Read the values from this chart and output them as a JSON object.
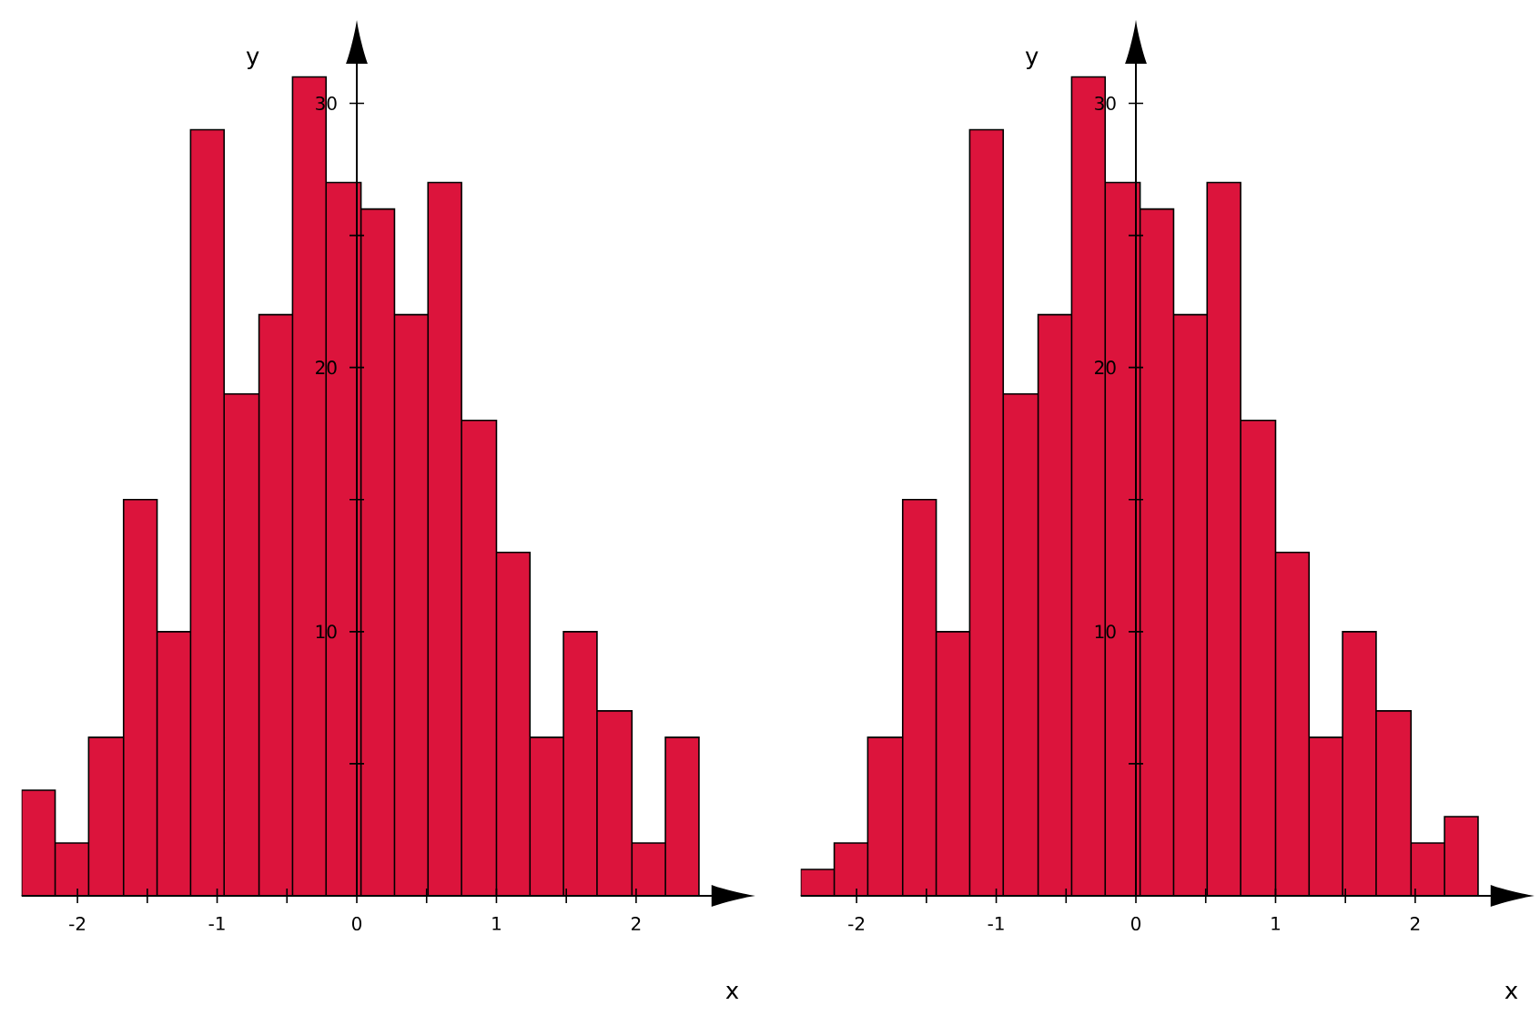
{
  "chart_data": [
    {
      "type": "histogram",
      "xlabel": "x",
      "ylabel": "y",
      "color": "#dc143c",
      "bins": [
        -2.4,
        -2.16,
        -1.92,
        -1.67,
        -1.43,
        -1.19,
        -0.95,
        -0.7,
        -0.46,
        -0.22,
        0.03,
        0.27,
        0.51,
        0.75,
        1.0,
        1.24,
        1.48,
        1.72,
        1.97,
        2.21,
        2.45
      ],
      "values": [
        4,
        2,
        6,
        15,
        10,
        29,
        19,
        22,
        31,
        27,
        26,
        22,
        27,
        18,
        13,
        6,
        10,
        7,
        2,
        6
      ],
      "xlim": [
        -2.4,
        2.54
      ],
      "ylim": [
        0,
        31.5
      ],
      "xticks": [
        -2,
        {
          "value": -1.5,
          "label": null
        },
        -1,
        {
          "value": -0.5,
          "label": null
        },
        0,
        {
          "value": 0.5,
          "label": null
        },
        1,
        {
          "value": 1.5,
          "label": null
        },
        2
      ],
      "yticks": [
        {
          "value": 5,
          "label": null
        },
        10,
        {
          "value": 15,
          "label": null
        },
        20,
        {
          "value": 25,
          "label": null
        },
        30
      ]
    },
    {
      "type": "histogram",
      "xlabel": "x",
      "ylabel": "y",
      "color": "#dc143c",
      "bins": [
        -2.4,
        -2.16,
        -1.92,
        -1.67,
        -1.43,
        -1.19,
        -0.95,
        -0.7,
        -0.46,
        -0.22,
        0.03,
        0.27,
        0.51,
        0.75,
        1.0,
        1.24,
        1.48,
        1.72,
        1.97,
        2.21,
        2.45
      ],
      "values": [
        1,
        2,
        6,
        15,
        10,
        29,
        19,
        22,
        31,
        27,
        26,
        22,
        27,
        18,
        13,
        6,
        10,
        7,
        2,
        3
      ],
      "xlim": [
        -2.4,
        2.54
      ],
      "ylim": [
        0,
        31.5
      ],
      "xticks": [
        -2,
        {
          "value": -1.5,
          "label": null
        },
        -1,
        {
          "value": -0.5,
          "label": null
        },
        0,
        {
          "value": 0.5,
          "label": null
        },
        1,
        {
          "value": 1.5,
          "label": null
        },
        2
      ],
      "yticks": [
        {
          "value": 5,
          "label": null
        },
        10,
        {
          "value": 15,
          "label": null
        },
        20,
        {
          "value": 25,
          "label": null
        },
        30
      ]
    }
  ]
}
